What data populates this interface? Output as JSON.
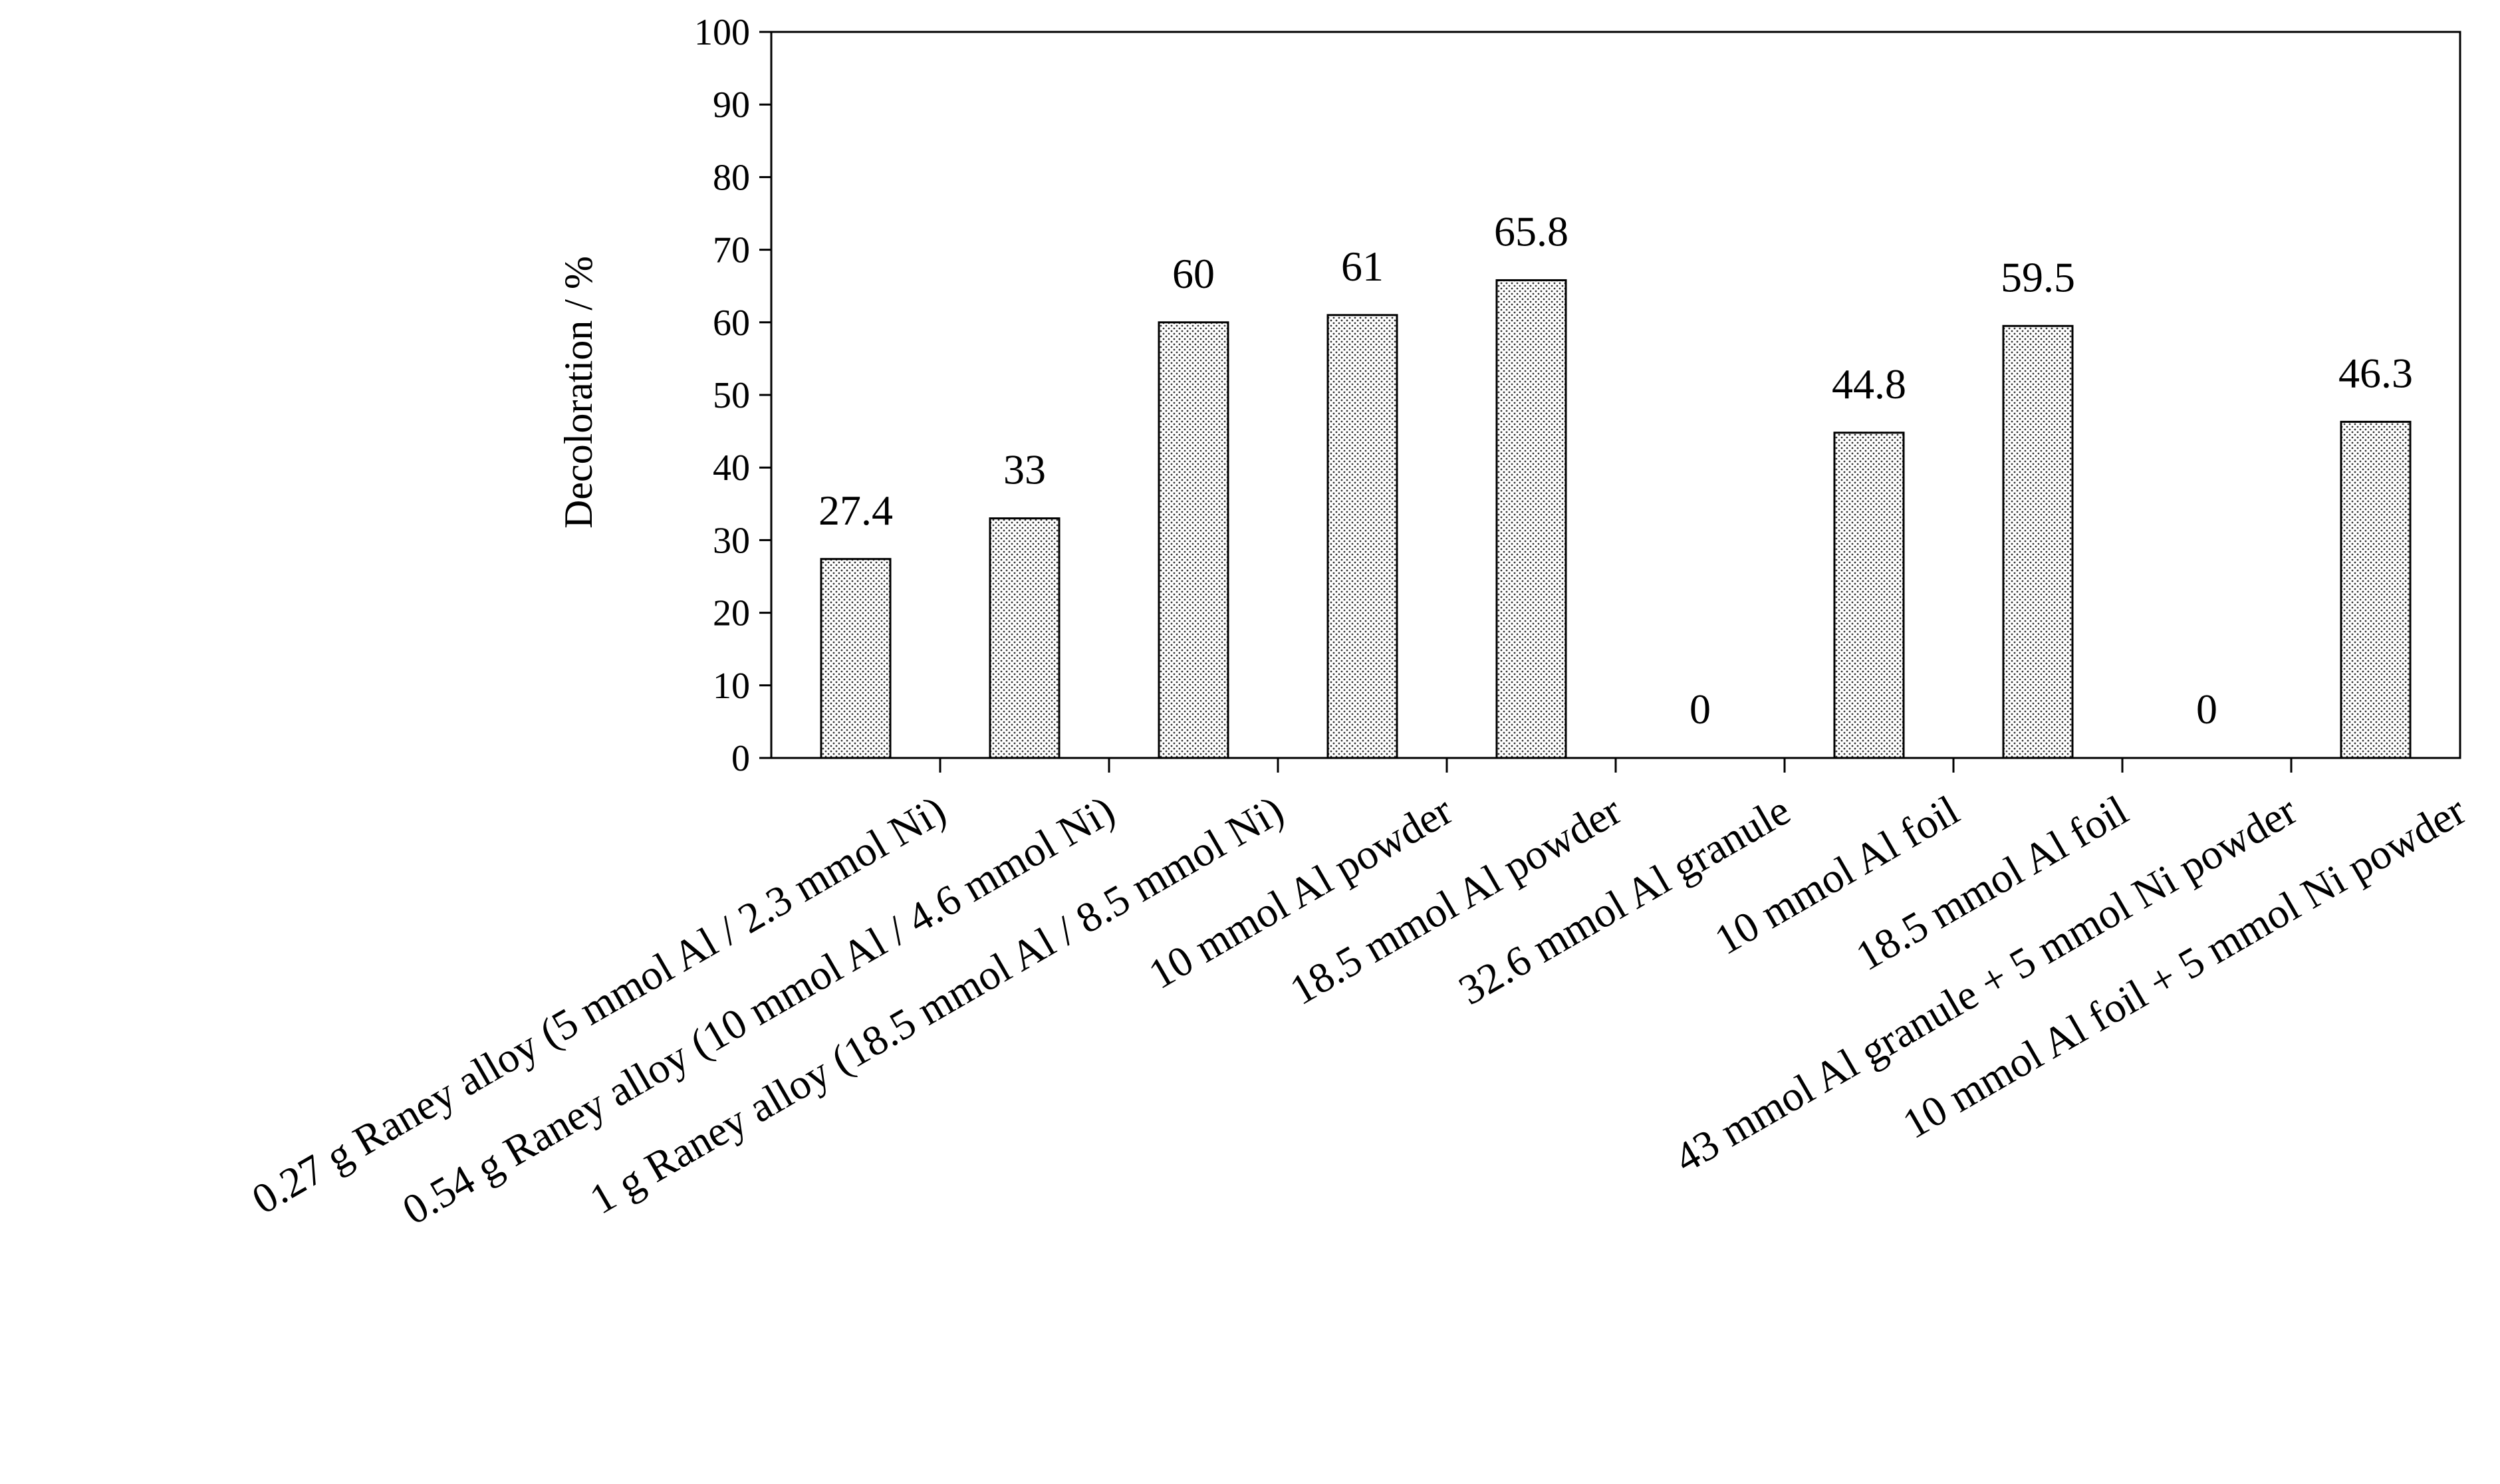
{
  "chart_data": {
    "type": "bar",
    "title": "",
    "xlabel": "",
    "ylabel": "Decoloration / %",
    "ylim": [
      0,
      100
    ],
    "ytick_step": 10,
    "grid": false,
    "categories": [
      "0.27 g Raney alloy (5 mmol Al / 2.3 mmol Ni)",
      "0.54 g Raney alloy (10 mmol Al / 4.6 mmol Ni)",
      "1 g  Raney alloy (18.5 mmol Al / 8.5 mmol Ni)",
      "10 mmol Al powder",
      "18.5 mmol Al powder",
      "32.6 mmol Al granule",
      "10 mmol Al foil",
      "18.5 mmol Al foil",
      "43 mmol Al granule + 5 mmol Ni powder",
      "10 mmol Al foil + 5 mmol Ni powder"
    ],
    "values": [
      27.4,
      33,
      60,
      61,
      65.8,
      0,
      44.8,
      59.5,
      0,
      46.3
    ],
    "data_labels": [
      "27.4",
      "33",
      "60",
      "61",
      "65.8",
      "0",
      "44.8",
      "59.5",
      "0",
      "46.3"
    ],
    "bar_pattern": "dotted"
  }
}
